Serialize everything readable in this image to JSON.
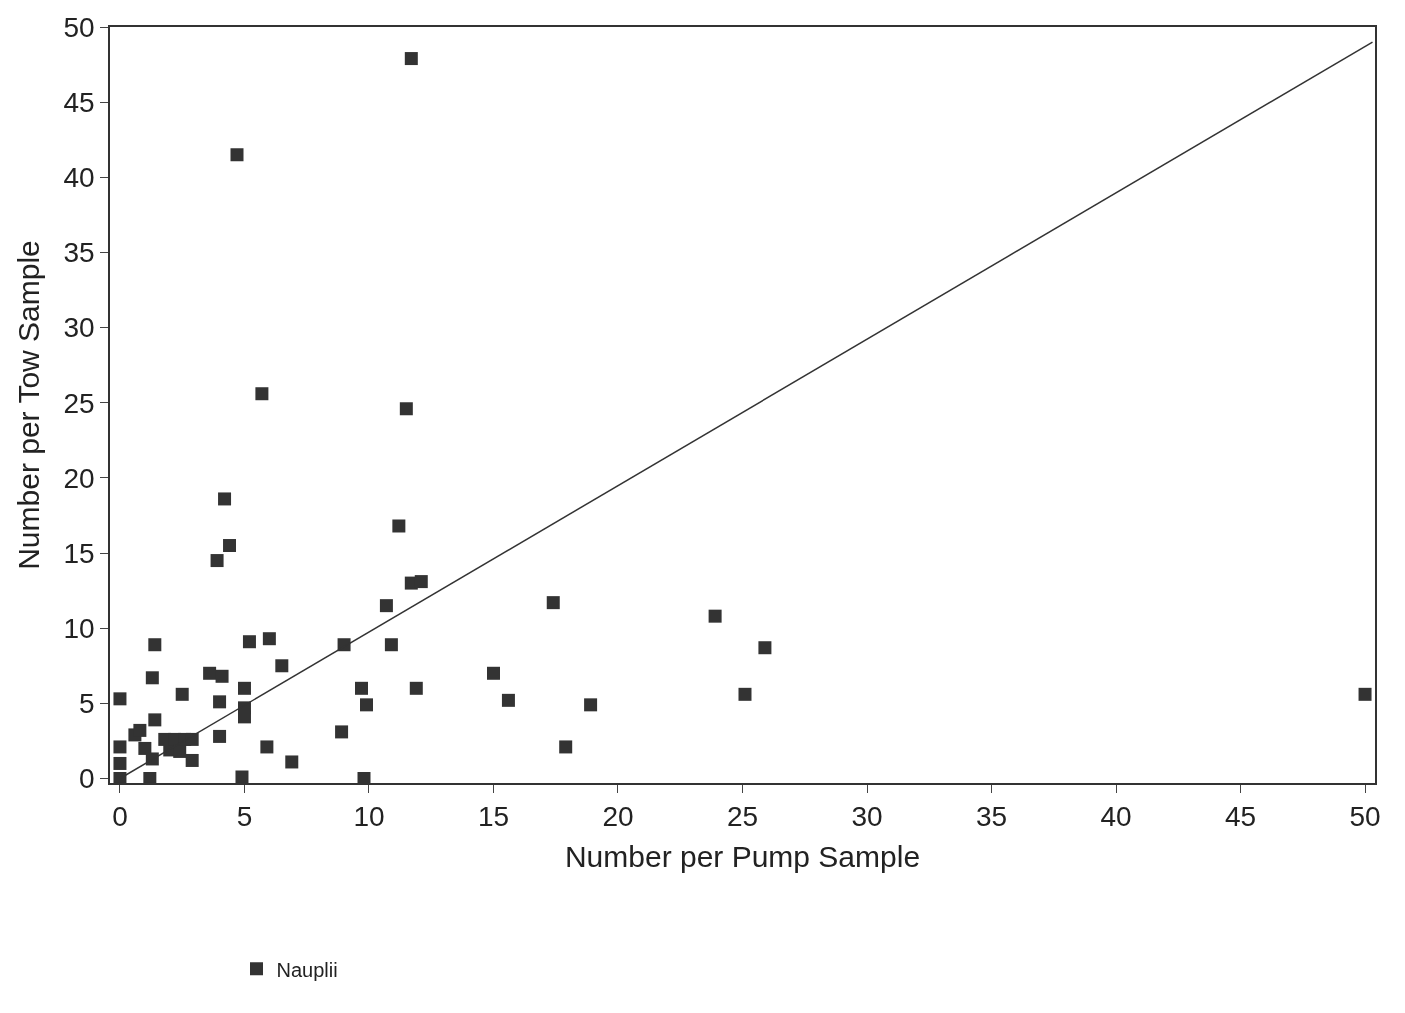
{
  "chart_data": {
    "type": "scatter",
    "xlabel": "Number per Pump Sample",
    "ylabel": "Number per Tow Sample",
    "xlim": [
      -0.4,
      50.4
    ],
    "ylim": [
      -0.3,
      50
    ],
    "xticks": [
      0,
      5,
      10,
      15,
      20,
      25,
      30,
      35,
      40,
      45,
      50
    ],
    "yticks": [
      0,
      5,
      10,
      15,
      20,
      25,
      30,
      35,
      40,
      45,
      50
    ],
    "legend": "bottom left",
    "series": [
      {
        "name": "Nauplii",
        "color": "#333333",
        "marker": "square",
        "x": [
          0,
          0,
          0,
          0,
          0.6,
          0.8,
          1,
          1.3,
          1.4,
          1.4,
          1.3,
          1.2,
          1.8,
          2,
          2.2,
          2.4,
          2.5,
          2.6,
          2.9,
          2.9,
          3.6,
          3.9,
          4.1,
          4,
          4,
          4.2,
          4.4,
          4.7,
          4.9,
          5,
          5,
          5,
          5.2,
          5.7,
          5.9,
          6,
          6.5,
          6.9,
          8.9,
          9,
          9.7,
          9.9,
          9.8,
          10.7,
          10.9,
          11.2,
          11.5,
          11.7,
          11.7,
          12.1,
          11.9,
          15,
          15.6,
          17.4,
          17.9,
          18.9,
          23.9,
          25.1,
          25.9,
          50
        ],
        "values": [
          5.3,
          2.1,
          1,
          0,
          2.9,
          3.2,
          2,
          6.7,
          8.9,
          3.9,
          1.3,
          0,
          2.6,
          1.9,
          2.6,
          1.8,
          5.6,
          2.6,
          1.2,
          2.6,
          7,
          14.5,
          6.8,
          5.1,
          2.8,
          18.6,
          15.5,
          41.5,
          0.1,
          6,
          4.7,
          4.1,
          9.1,
          25.6,
          2.1,
          9.3,
          7.5,
          1.1,
          3.1,
          8.9,
          6,
          4.9,
          0,
          11.5,
          8.9,
          16.8,
          24.6,
          47.9,
          13,
          13.1,
          6,
          7,
          5.2,
          11.7,
          2.1,
          4.9,
          10.8,
          5.6,
          8.7,
          5.6
        ]
      },
      {
        "type": "line",
        "marker": "none",
        "color": "#333333",
        "x": [
          0,
          50.3
        ],
        "values": [
          0,
          49
        ]
      }
    ]
  }
}
